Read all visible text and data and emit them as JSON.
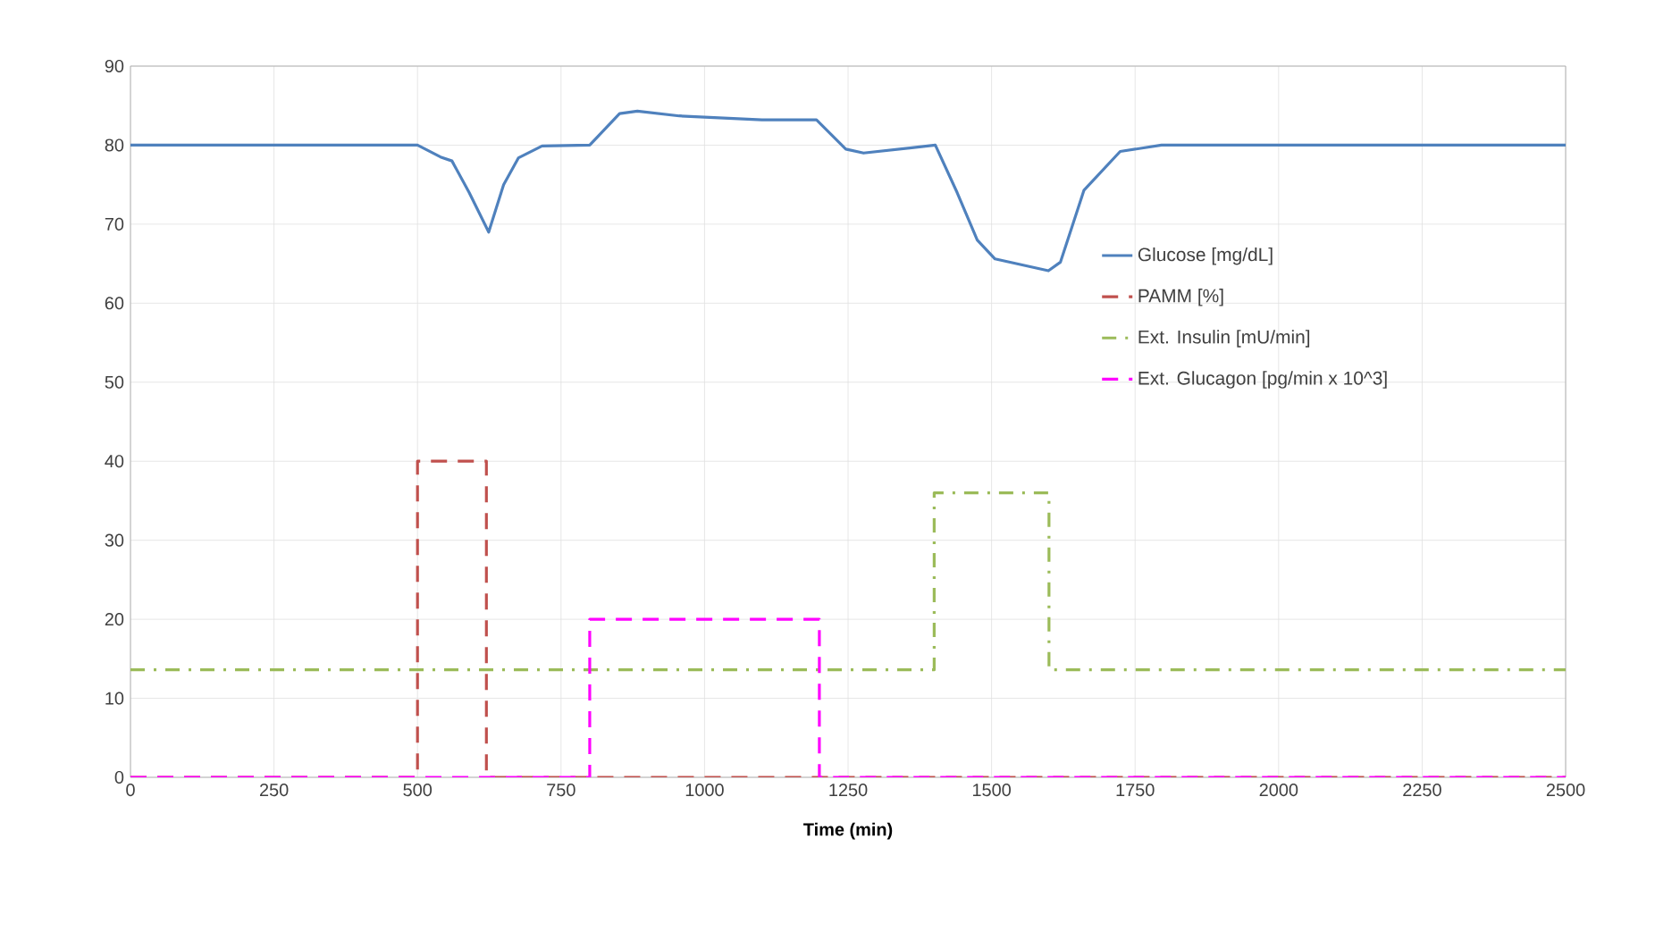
{
  "chart_data": {
    "type": "line",
    "xlabel": "Time (min)",
    "xlim": [
      0,
      2500
    ],
    "xticks": [
      0,
      250,
      500,
      750,
      1000,
      1250,
      1500,
      1750,
      2000,
      2250,
      2500
    ],
    "ylim": [
      0,
      90
    ],
    "yticks": [
      0,
      10,
      20,
      30,
      40,
      50,
      60,
      70,
      80,
      90
    ],
    "grid": true,
    "legend": "right",
    "series": [
      {
        "name": "Glucose [mg/dL]",
        "color": "#4f81bd",
        "line_style": "solid",
        "x": [
          0,
          500,
          540,
          560,
          590,
          624,
          650,
          676,
          717,
          800,
          852,
          883,
          956,
          1100,
          1195,
          1246,
          1277,
          1402,
          1440,
          1475,
          1506,
          1599,
          1620,
          1661,
          1724,
          1796,
          2500
        ],
        "values": [
          80,
          80,
          78.5,
          78,
          74,
          69,
          75,
          78.4,
          79.9,
          80,
          84,
          84.3,
          83.7,
          83.2,
          83.2,
          79.5,
          79,
          80,
          74,
          68,
          65.6,
          64.1,
          65.2,
          74.3,
          79.2,
          80,
          80
        ]
      },
      {
        "name": "PAMM [%]",
        "color": "#c0504d",
        "line_style": "dashed",
        "x": [
          0,
          500,
          500,
          620,
          620,
          2500
        ],
        "values": [
          0,
          0,
          40,
          40,
          0,
          0
        ]
      },
      {
        "name": "Ext. Insulin [mU/min]",
        "color": "#9bbb59",
        "line_style": "dashdot",
        "x": [
          0,
          1400,
          1400,
          1600,
          1600,
          2500
        ],
        "values": [
          13.6,
          13.6,
          36,
          36,
          13.6,
          13.6
        ]
      },
      {
        "name": "Ext. Glucagon [pg/min x 10^3]",
        "color": "#ff00ff",
        "line_style": "dashed",
        "x": [
          0,
          800,
          800,
          1200,
          1200,
          2500
        ],
        "values": [
          0,
          0,
          20,
          20,
          0,
          0
        ]
      }
    ]
  }
}
